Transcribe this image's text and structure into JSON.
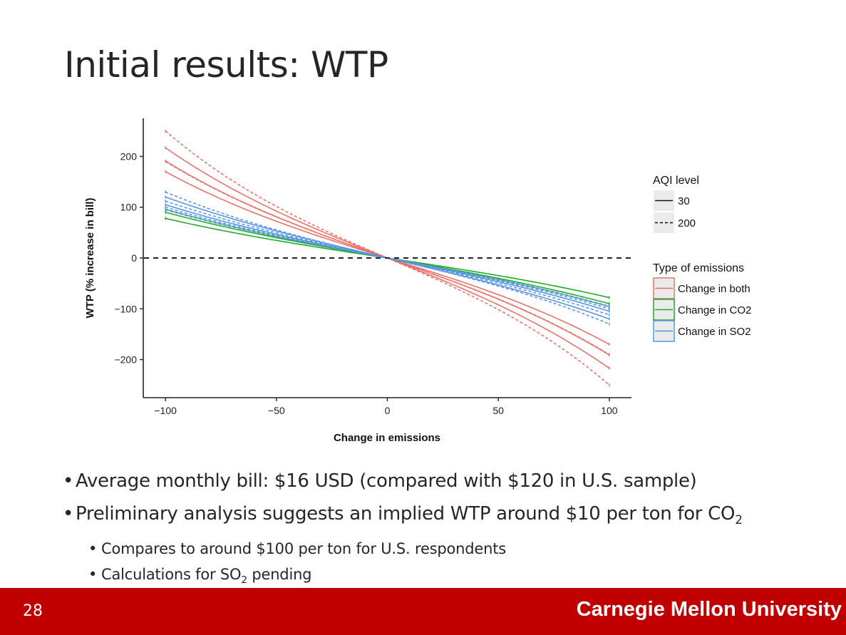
{
  "slide": {
    "title": "Initial results: WTP",
    "page_number": "28",
    "brand": "Carnegie Mellon University"
  },
  "bullets": {
    "b1": "Average monthly bill: $16 USD (compared with $120 in U.S. sample)",
    "b2_main": "Preliminary analysis suggests an implied WTP around $10 per ton for CO",
    "b2_sub": "2",
    "b3": "Compares to around $100 per ton for U.S. respondents",
    "b4_pre": "Calculations for SO",
    "b4_sub": "2",
    "b4_post": " pending"
  },
  "chart_data": {
    "type": "line",
    "xlabel": "Change in emissions",
    "ylabel": "WTP (% increase in bill)",
    "xlim": [
      -110,
      110
    ],
    "ylim": [
      -275,
      275
    ],
    "xticks": [
      -100,
      -50,
      0,
      50,
      100
    ],
    "yticks": [
      -200,
      -100,
      0,
      100,
      200
    ],
    "reference_line": {
      "y": 0,
      "style": "dashed"
    },
    "legend": {
      "position": "right",
      "linetype_title": "AQI level",
      "linetype_entries": [
        {
          "label": "30",
          "style": "solid"
        },
        {
          "label": "200",
          "style": "dashed"
        }
      ],
      "color_title": "Type of emissions",
      "color_entries": [
        {
          "label": "Change in both",
          "color": "#e8726b"
        },
        {
          "label": "Change in CO2",
          "color": "#1fab2c"
        },
        {
          "label": "Change in SO2",
          "color": "#5996e0"
        }
      ]
    },
    "series": [
      {
        "emission": "both",
        "aqi": "30",
        "band": "upper",
        "y_at_minus100": 217,
        "curvature": 0.2
      },
      {
        "emission": "both",
        "aqi": "30",
        "band": "mid",
        "y_at_minus100": 191,
        "curvature": 0.2
      },
      {
        "emission": "both",
        "aqi": "30",
        "band": "lower",
        "y_at_minus100": 170,
        "curvature": 0.2
      },
      {
        "emission": "both",
        "aqi": "200",
        "band": "upper",
        "y_at_minus100": 250,
        "curvature": 0.25
      },
      {
        "emission": "both",
        "aqi": "200",
        "band": "mid",
        "y_at_minus100": 190,
        "curvature": 0.2
      },
      {
        "emission": "CO2",
        "aqi": "30",
        "band": "upper",
        "y_at_minus100": 90,
        "curvature": 0.15
      },
      {
        "emission": "CO2",
        "aqi": "30",
        "band": "lower",
        "y_at_minus100": 78,
        "curvature": 0.15
      },
      {
        "emission": "CO2",
        "aqi": "200",
        "band": "mid",
        "y_at_minus100": 95,
        "curvature": 0.15
      },
      {
        "emission": "SO2",
        "aqi": "30",
        "band": "upper",
        "y_at_minus100": 120,
        "curvature": 0.15
      },
      {
        "emission": "SO2",
        "aqi": "30",
        "band": "mid",
        "y_at_minus100": 105,
        "curvature": 0.15
      },
      {
        "emission": "SO2",
        "aqi": "30",
        "band": "lower",
        "y_at_minus100": 96,
        "curvature": 0.15
      },
      {
        "emission": "SO2",
        "aqi": "200",
        "band": "upper",
        "y_at_minus100": 130,
        "curvature": 0.2
      },
      {
        "emission": "SO2",
        "aqi": "200",
        "band": "mid",
        "y_at_minus100": 112,
        "curvature": 0.15
      },
      {
        "emission": "SO2",
        "aqi": "200",
        "band": "lower",
        "y_at_minus100": 100,
        "curvature": 0.15
      }
    ]
  }
}
